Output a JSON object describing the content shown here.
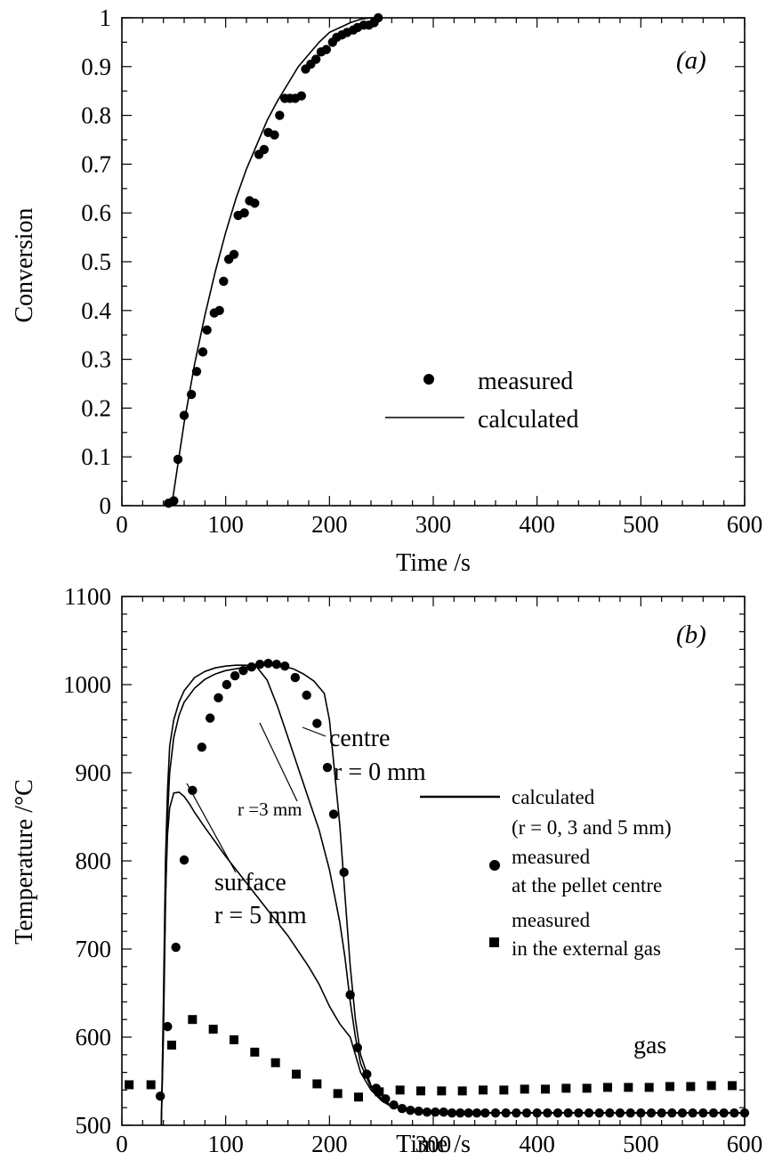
{
  "chart_data": [
    {
      "type": "scatter",
      "panel_label": "(a)",
      "xlabel": "Time /s",
      "ylabel": "Conversion",
      "xlim": [
        0,
        600
      ],
      "ylim": [
        0,
        1
      ],
      "x_ticks": [
        "0",
        "100",
        "200",
        "300",
        "400",
        "500",
        "600"
      ],
      "y_ticks": [
        "0",
        "0.1",
        "0.2",
        "0.3",
        "0.4",
        "0.5",
        "0.6",
        "0.7",
        "0.8",
        "0.9",
        "1"
      ],
      "legend": {
        "position": "center-right",
        "measured_label": "measured",
        "calculated_label": "calculated"
      },
      "series": [
        {
          "name": "measured",
          "marker": "circle",
          "x": [
            45,
            50,
            54,
            60,
            67,
            72,
            78,
            82,
            89,
            94,
            98,
            103,
            108,
            112,
            118,
            123,
            128,
            132,
            137,
            141,
            147,
            152,
            157,
            162,
            167,
            173,
            177,
            182,
            187,
            192,
            197,
            203,
            207,
            212,
            217,
            223,
            227,
            233,
            238,
            243,
            247
          ],
          "y": [
            0.005,
            0.01,
            0.095,
            0.185,
            0.228,
            0.275,
            0.315,
            0.36,
            0.395,
            0.4,
            0.46,
            0.505,
            0.515,
            0.595,
            0.6,
            0.625,
            0.62,
            0.72,
            0.73,
            0.765,
            0.76,
            0.8,
            0.835,
            0.835,
            0.835,
            0.84,
            0.895,
            0.905,
            0.915,
            0.93,
            0.935,
            0.95,
            0.96,
            0.965,
            0.97,
            0.975,
            0.98,
            0.985,
            0.985,
            0.99,
            1.0
          ]
        },
        {
          "name": "calculated",
          "line": "solid",
          "x": [
            48,
            55,
            60,
            70,
            80,
            90,
            100,
            110,
            120,
            130,
            140,
            150,
            160,
            170,
            180,
            190,
            200,
            210,
            220,
            230,
            240,
            250
          ],
          "y": [
            0,
            0.1,
            0.17,
            0.29,
            0.39,
            0.48,
            0.56,
            0.63,
            0.69,
            0.74,
            0.79,
            0.83,
            0.865,
            0.9,
            0.925,
            0.95,
            0.97,
            0.98,
            0.99,
            0.997,
            1.0,
            1.0
          ]
        }
      ]
    },
    {
      "type": "scatter",
      "panel_label": "(b)",
      "xlabel": "Time /s",
      "ylabel": "Temperature /°C",
      "xlim": [
        0,
        600
      ],
      "ylim": [
        500,
        1100
      ],
      "x_ticks": [
        "0",
        "100",
        "200",
        "300",
        "400",
        "500",
        "600"
      ],
      "y_ticks": [
        "500",
        "600",
        "700",
        "800",
        "900",
        "1000",
        "1100"
      ],
      "legend": {
        "position": "right",
        "calculated_line1": "calculated",
        "calculated_line2": "(r = 0, 3 and 5 mm)",
        "centre_line1": "measured",
        "centre_line2": "at the pellet centre",
        "gas_line1": "measured",
        "gas_line2": "in the external gas"
      },
      "annotations": {
        "centre": "centre",
        "centre_r": "r = 0 mm",
        "mid_r": "r =3 mm",
        "surface": "surface",
        "surface_r": "r = 5 mm",
        "gas": "gas"
      },
      "series": [
        {
          "name": "measured at the pellet centre",
          "marker": "circle",
          "x": [
            37,
            44,
            52,
            60,
            68,
            77,
            85,
            93,
            101,
            109,
            117,
            125,
            133,
            141,
            149,
            157,
            167,
            178,
            188,
            198,
            204,
            214,
            220,
            227,
            236,
            245,
            254,
            262,
            270,
            278,
            286,
            294,
            302,
            310,
            318,
            326,
            334,
            342,
            350,
            360,
            370,
            380,
            390,
            400,
            410,
            420,
            430,
            440,
            450,
            460,
            470,
            480,
            490,
            500,
            510,
            520,
            530,
            540,
            550,
            560,
            570,
            580,
            590,
            600
          ],
          "y": [
            533,
            612,
            702,
            801,
            880,
            929,
            962,
            985,
            1000,
            1010,
            1016,
            1020,
            1023,
            1024,
            1023,
            1021,
            1008,
            988,
            956,
            906,
            853,
            787,
            648,
            588,
            558,
            542,
            530,
            523,
            519,
            517,
            516,
            515,
            515,
            515,
            514,
            514,
            514,
            514,
            514,
            514,
            514,
            514,
            514,
            514,
            514,
            514,
            514,
            514,
            514,
            514,
            514,
            514,
            514,
            514,
            514,
            514,
            514,
            514,
            514,
            514,
            514,
            514,
            514,
            514
          ]
        },
        {
          "name": "measured in the external gas",
          "marker": "square",
          "x": [
            7,
            28,
            48,
            68,
            88,
            108,
            128,
            148,
            168,
            188,
            208,
            228,
            248,
            268,
            288,
            308,
            328,
            348,
            368,
            388,
            408,
            428,
            448,
            468,
            488,
            508,
            528,
            548,
            568,
            588
          ],
          "y": [
            546,
            546,
            591,
            620,
            609,
            597,
            583,
            571,
            558,
            547,
            536,
            532,
            538,
            540,
            539,
            539,
            539,
            540,
            540,
            541,
            541,
            542,
            542,
            543,
            543,
            543,
            544,
            544,
            545,
            545
          ]
        },
        {
          "name": "calculated r = 0 mm",
          "line": "solid",
          "x": [
            38,
            40,
            42,
            44,
            46,
            50,
            55,
            60,
            70,
            80,
            90,
            100,
            120,
            135,
            150,
            165,
            175,
            185,
            195,
            200,
            205,
            210,
            215,
            220,
            225,
            230,
            240,
            250,
            260,
            280,
            300,
            350,
            400,
            500,
            600
          ],
          "y": [
            500,
            600,
            750,
            850,
            900,
            940,
            965,
            980,
            996,
            1006,
            1012,
            1016,
            1020,
            1022,
            1022,
            1018,
            1012,
            1004,
            990,
            960,
            900,
            840,
            760,
            680,
            620,
            580,
            545,
            530,
            522,
            517,
            515,
            514,
            514,
            514,
            514
          ]
        },
        {
          "name": "calculated r = 3 mm",
          "line": "solid",
          "x": [
            38,
            40,
            42,
            44,
            46,
            50,
            55,
            60,
            70,
            80,
            90,
            100,
            110,
            120,
            130,
            140,
            150,
            160,
            170,
            180,
            190,
            200,
            205,
            210,
            215,
            220,
            225,
            230,
            240,
            250,
            260,
            280,
            300,
            350,
            400,
            500,
            600
          ],
          "y": [
            500,
            640,
            800,
            880,
            930,
            960,
            980,
            993,
            1008,
            1015,
            1019,
            1021,
            1022,
            1022,
            1020,
            1005,
            975,
            940,
            905,
            870,
            835,
            790,
            760,
            730,
            690,
            640,
            600,
            570,
            543,
            530,
            522,
            517,
            515,
            514,
            514,
            514,
            514
          ]
        },
        {
          "name": "calculated r = 5 mm",
          "line": "solid",
          "x": [
            38,
            40,
            42,
            44,
            46,
            50,
            55,
            60,
            65,
            70,
            80,
            100,
            120,
            140,
            160,
            180,
            190,
            200,
            210,
            220,
            225,
            230,
            240,
            250,
            260,
            280,
            300,
            350,
            400,
            500,
            600
          ],
          "y": [
            500,
            620,
            760,
            830,
            860,
            877,
            878,
            873,
            865,
            855,
            838,
            805,
            775,
            745,
            715,
            680,
            660,
            635,
            615,
            600,
            580,
            560,
            540,
            528,
            521,
            517,
            515,
            514,
            514,
            514,
            514
          ]
        }
      ]
    }
  ]
}
